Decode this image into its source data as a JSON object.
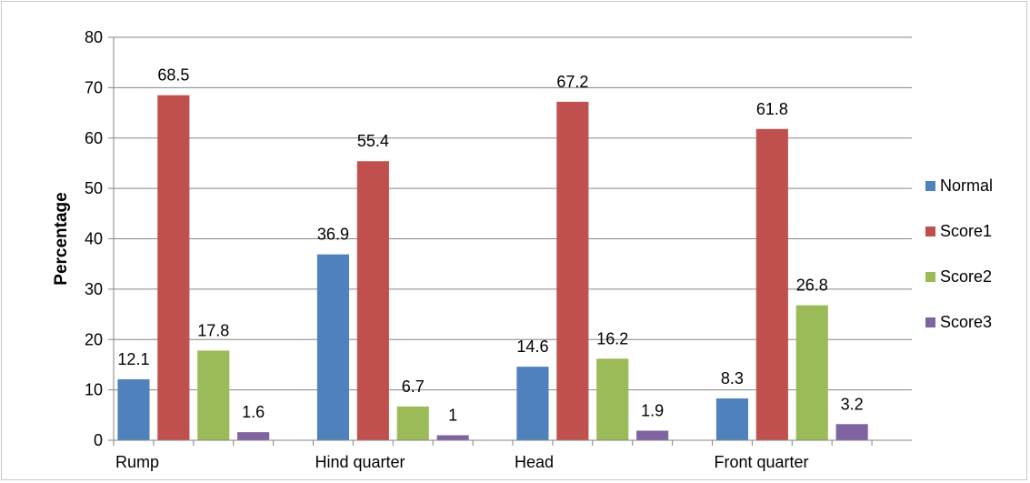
{
  "chart_data": {
    "type": "bar",
    "title": "",
    "xlabel": "",
    "ylabel": "Percentage",
    "ylim": [
      0,
      80
    ],
    "yticks": [
      0,
      10,
      20,
      30,
      40,
      50,
      60,
      70,
      80
    ],
    "grid": true,
    "legend_position": "right",
    "categories": [
      "Rump",
      "Hind quarter",
      "Head",
      "Front quarter"
    ],
    "series": [
      {
        "name": "Normal",
        "color": "#4f81bd",
        "values": [
          12.1,
          36.9,
          14.6,
          8.3
        ],
        "labels": [
          "12.1",
          "36.9",
          "14.6",
          "8.3"
        ]
      },
      {
        "name": "Score1",
        "color": "#c0504d",
        "values": [
          68.5,
          55.4,
          67.2,
          61.8
        ],
        "labels": [
          "68.5",
          "55.4",
          "67.2",
          "61.8"
        ]
      },
      {
        "name": "Score2",
        "color": "#9bbb59",
        "values": [
          17.8,
          6.7,
          16.2,
          26.8
        ],
        "labels": [
          "17.8",
          "6.7",
          "16.2",
          "26.8"
        ]
      },
      {
        "name": "Score3",
        "color": "#8064a2",
        "values": [
          1.6,
          1,
          1.9,
          3.2
        ],
        "labels": [
          "1.6",
          "1",
          "1.9",
          "3.2"
        ]
      }
    ]
  }
}
